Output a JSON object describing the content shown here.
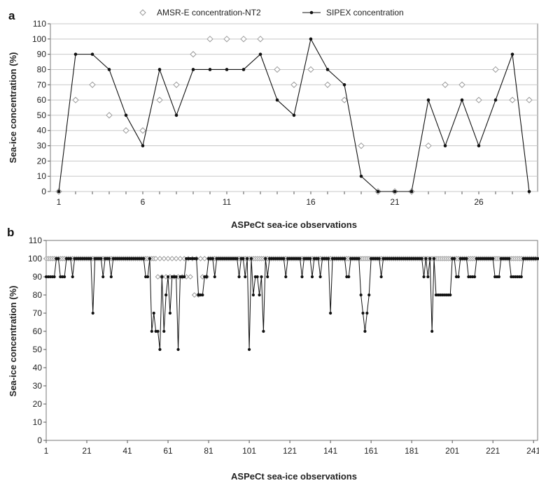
{
  "legend": {
    "amsr_label": "AMSR-E concentration-NT2",
    "sipex_label": "SIPEX concentration"
  },
  "chart_data": [
    {
      "panel": "a",
      "type": "line",
      "xlabel": "ASPeCt sea-ice observations",
      "ylabel": "Sea-ice concentration (%)",
      "ylim": [
        0,
        110
      ],
      "yticks": [
        0,
        10,
        20,
        30,
        40,
        50,
        60,
        70,
        80,
        90,
        100,
        110
      ],
      "xlim": [
        0.5,
        29.5
      ],
      "xticks": [
        1,
        6,
        11,
        16,
        21,
        26
      ],
      "grid": "horizontal",
      "legend_position": "top-center",
      "series": [
        {
          "name": "AMSR-E concentration-NT2",
          "style": "hollow-diamond-markers",
          "color": "#9a9a9a",
          "x": [
            1,
            2,
            3,
            4,
            5,
            6,
            7,
            8,
            9,
            10,
            11,
            12,
            13,
            14,
            15,
            16,
            17,
            18,
            19,
            20,
            21,
            22,
            23,
            24,
            25,
            26,
            27,
            28,
            29
          ],
          "values": [
            0,
            60,
            70,
            50,
            40,
            40,
            60,
            70,
            90,
            100,
            100,
            100,
            100,
            80,
            70,
            80,
            70,
            60,
            30,
            0,
            0,
            0,
            30,
            70,
            70,
            60,
            80,
            60,
            60
          ]
        },
        {
          "name": "SIPEX concentration",
          "style": "line-with-filled-dots",
          "color": "#111111",
          "x": [
            1,
            2,
            3,
            4,
            5,
            6,
            7,
            8,
            9,
            10,
            11,
            12,
            13,
            14,
            15,
            16,
            17,
            18,
            19,
            20,
            21,
            22,
            23,
            24,
            25,
            26,
            27,
            28,
            29
          ],
          "values": [
            0,
            90,
            90,
            80,
            50,
            30,
            80,
            50,
            80,
            80,
            80,
            80,
            90,
            60,
            50,
            100,
            80,
            70,
            10,
            0,
            0,
            0,
            60,
            30,
            60,
            30,
            60,
            90,
            0
          ]
        }
      ]
    },
    {
      "panel": "b",
      "type": "line",
      "xlabel": "ASPeCt sea-ice observations",
      "ylabel": "Sea-ice concentration (%)",
      "ylim": [
        0,
        110
      ],
      "yticks": [
        0,
        10,
        20,
        30,
        40,
        50,
        60,
        70,
        80,
        90,
        100,
        110
      ],
      "xlim": [
        1,
        243
      ],
      "xticks": [
        1,
        21,
        41,
        61,
        81,
        101,
        121,
        141,
        161,
        181,
        201,
        221,
        241
      ],
      "grid": "none",
      "n_observations": 243,
      "baseline": 100,
      "series": [
        {
          "name": "AMSR-E concentration-NT2",
          "style": "hollow-diamond-markers",
          "color": "#9a9a9a",
          "baseline": 100,
          "dips": [
            {
              "x": 56,
              "v": 90
            },
            {
              "x": 58,
              "v": 90
            },
            {
              "x": 60,
              "v": 90
            },
            {
              "x": 62,
              "v": 90
            },
            {
              "x": 64,
              "v": 90
            },
            {
              "x": 66,
              "v": 90
            },
            {
              "x": 68,
              "v": 90
            },
            {
              "x": 70,
              "v": 90
            },
            {
              "x": 72,
              "v": 90
            },
            {
              "x": 74,
              "v": 80
            },
            {
              "x": 76,
              "v": 80
            },
            {
              "x": 78,
              "v": 90
            },
            {
              "x": 80,
              "v": 90
            }
          ]
        },
        {
          "name": "SIPEX concentration",
          "style": "line-with-filled-dots",
          "color": "#111111",
          "baseline": 100,
          "dips": [
            {
              "x": 1,
              "v": 90
            },
            {
              "x": 2,
              "v": 90
            },
            {
              "x": 3,
              "v": 90
            },
            {
              "x": 4,
              "v": 90
            },
            {
              "x": 5,
              "v": 90
            },
            {
              "x": 8,
              "v": 90
            },
            {
              "x": 9,
              "v": 90
            },
            {
              "x": 10,
              "v": 90
            },
            {
              "x": 14,
              "v": 90
            },
            {
              "x": 24,
              "v": 70
            },
            {
              "x": 29,
              "v": 90
            },
            {
              "x": 33,
              "v": 90
            },
            {
              "x": 50,
              "v": 90
            },
            {
              "x": 51,
              "v": 90
            },
            {
              "x": 53,
              "v": 60
            },
            {
              "x": 54,
              "v": 70
            },
            {
              "x": 55,
              "v": 60
            },
            {
              "x": 56,
              "v": 60
            },
            {
              "x": 57,
              "v": 50
            },
            {
              "x": 58,
              "v": 90
            },
            {
              "x": 59,
              "v": 60
            },
            {
              "x": 60,
              "v": 80
            },
            {
              "x": 61,
              "v": 90
            },
            {
              "x": 62,
              "v": 70
            },
            {
              "x": 63,
              "v": 90
            },
            {
              "x": 64,
              "v": 90
            },
            {
              "x": 65,
              "v": 90
            },
            {
              "x": 66,
              "v": 50
            },
            {
              "x": 67,
              "v": 90
            },
            {
              "x": 68,
              "v": 90
            },
            {
              "x": 69,
              "v": 90
            },
            {
              "x": 76,
              "v": 80
            },
            {
              "x": 77,
              "v": 80
            },
            {
              "x": 78,
              "v": 80
            },
            {
              "x": 79,
              "v": 90
            },
            {
              "x": 80,
              "v": 90
            },
            {
              "x": 84,
              "v": 90
            },
            {
              "x": 96,
              "v": 90
            },
            {
              "x": 99,
              "v": 90
            },
            {
              "x": 101,
              "v": 50
            },
            {
              "x": 103,
              "v": 80
            },
            {
              "x": 104,
              "v": 90
            },
            {
              "x": 105,
              "v": 90
            },
            {
              "x": 106,
              "v": 80
            },
            {
              "x": 107,
              "v": 90
            },
            {
              "x": 108,
              "v": 60
            },
            {
              "x": 110,
              "v": 90
            },
            {
              "x": 119,
              "v": 90
            },
            {
              "x": 127,
              "v": 90
            },
            {
              "x": 132,
              "v": 90
            },
            {
              "x": 136,
              "v": 90
            },
            {
              "x": 141,
              "v": 70
            },
            {
              "x": 149,
              "v": 90
            },
            {
              "x": 150,
              "v": 90
            },
            {
              "x": 156,
              "v": 80
            },
            {
              "x": 157,
              "v": 70
            },
            {
              "x": 158,
              "v": 60
            },
            {
              "x": 159,
              "v": 70
            },
            {
              "x": 160,
              "v": 80
            },
            {
              "x": 166,
              "v": 90
            },
            {
              "x": 187,
              "v": 90
            },
            {
              "x": 189,
              "v": 90
            },
            {
              "x": 191,
              "v": 60
            },
            {
              "x": 193,
              "v": 80
            },
            {
              "x": 194,
              "v": 80
            },
            {
              "x": 195,
              "v": 80
            },
            {
              "x": 196,
              "v": 80
            },
            {
              "x": 197,
              "v": 80
            },
            {
              "x": 198,
              "v": 80
            },
            {
              "x": 199,
              "v": 80
            },
            {
              "x": 200,
              "v": 80
            },
            {
              "x": 203,
              "v": 90
            },
            {
              "x": 204,
              "v": 90
            },
            {
              "x": 209,
              "v": 90
            },
            {
              "x": 210,
              "v": 90
            },
            {
              "x": 211,
              "v": 90
            },
            {
              "x": 212,
              "v": 90
            },
            {
              "x": 222,
              "v": 90
            },
            {
              "x": 223,
              "v": 90
            },
            {
              "x": 224,
              "v": 90
            },
            {
              "x": 230,
              "v": 90
            },
            {
              "x": 231,
              "v": 90
            },
            {
              "x": 232,
              "v": 90
            },
            {
              "x": 233,
              "v": 90
            },
            {
              "x": 234,
              "v": 90
            },
            {
              "x": 235,
              "v": 90
            }
          ]
        }
      ]
    }
  ]
}
